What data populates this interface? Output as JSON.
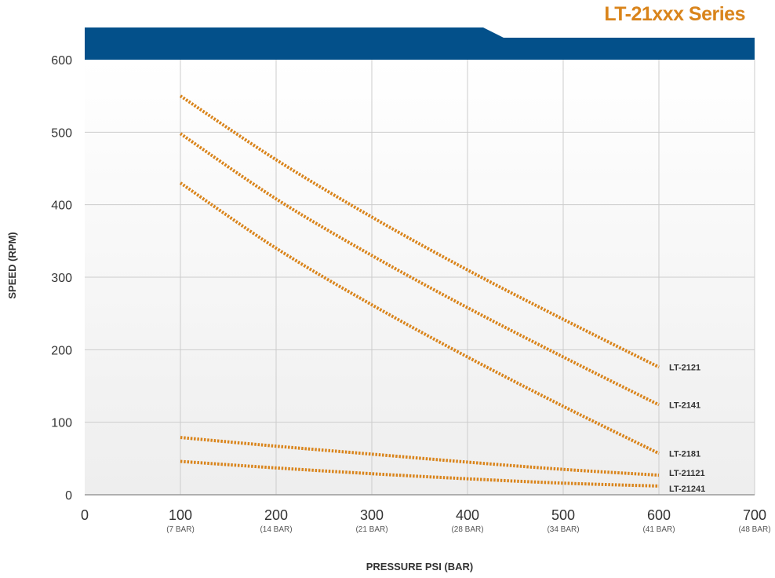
{
  "header": {
    "series_title": "LT-21xxx Series",
    "title_color": "#d9841b",
    "banner_color": "#03508a"
  },
  "colors": {
    "line": "#d9841b",
    "grid": "#cccccc",
    "plot_bg_top": "#ffffff",
    "plot_bg_bottom": "#eeeeee"
  },
  "chart_data": {
    "type": "line",
    "xlabel": "PRESSURE  PSI (BAR)",
    "ylabel": "SPEED  (RPM)",
    "xlim": [
      0,
      700
    ],
    "ylim": [
      0,
      600
    ],
    "x_ticks": [
      {
        "value": 0,
        "label": "0",
        "sub": ""
      },
      {
        "value": 100,
        "label": "100",
        "sub": "(7 BAR)"
      },
      {
        "value": 200,
        "label": "200",
        "sub": "(14 BAR)"
      },
      {
        "value": 300,
        "label": "300",
        "sub": "(21 BAR)"
      },
      {
        "value": 400,
        "label": "400",
        "sub": "(28 BAR)"
      },
      {
        "value": 500,
        "label": "500",
        "sub": "(34 BAR)"
      },
      {
        "value": 600,
        "label": "600",
        "sub": "(41 BAR)"
      },
      {
        "value": 700,
        "label": "700",
        "sub": "(48 BAR)"
      }
    ],
    "y_ticks": [
      0,
      100,
      200,
      300,
      400,
      500,
      600
    ],
    "grid": true,
    "series": [
      {
        "name": "LT-2121",
        "x": [
          100,
          200,
          300,
          400,
          500,
          600
        ],
        "y": [
          550,
          462,
          383,
          310,
          242,
          176
        ]
      },
      {
        "name": "LT-2141",
        "x": [
          100,
          200,
          300,
          400,
          500,
          600
        ],
        "y": [
          498,
          408,
          330,
          258,
          190,
          124
        ]
      },
      {
        "name": "LT-2181",
        "x": [
          100,
          200,
          300,
          400,
          500,
          600
        ],
        "y": [
          430,
          340,
          262,
          190,
          122,
          57
        ]
      },
      {
        "name": "LT-21121",
        "x": [
          100,
          200,
          300,
          400,
          500,
          600
        ],
        "y": [
          79,
          67,
          56,
          45,
          35,
          27
        ]
      },
      {
        "name": "LT-21241",
        "x": [
          100,
          200,
          300,
          400,
          500,
          600
        ],
        "y": [
          46,
          37,
          29,
          22,
          16,
          12
        ]
      }
    ]
  }
}
